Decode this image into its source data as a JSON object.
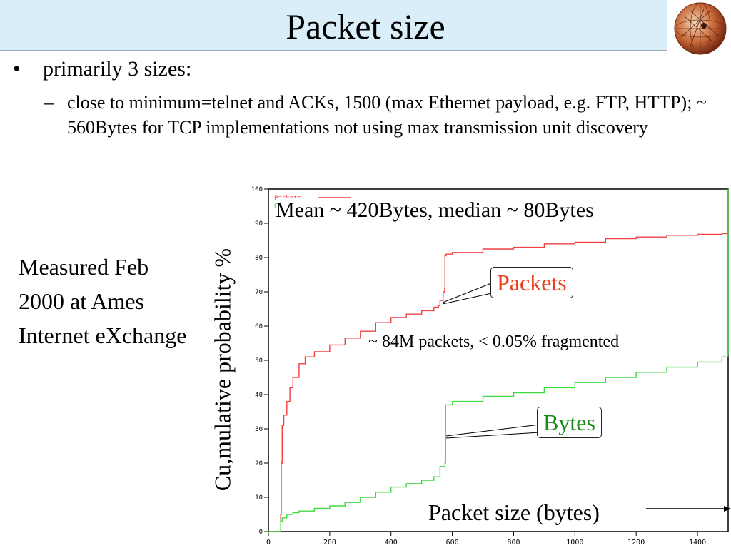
{
  "slide": {
    "title": "Packet size",
    "bullet": "primarily 3 sizes:",
    "sub_bullet": "close to minimum=telnet and ACKs, 1500 (max Ethernet payload, e.g. FTP, HTTP); ~ 560Bytes for TCP implementations not using max transmission unit discovery",
    "note": "Measured Feb 2000 at Ames Internet eXchange",
    "bullet_mark": "•",
    "dash_mark": "–"
  },
  "colors": {
    "packets": "#f04040",
    "bytes": "#40d840",
    "packets_label": "#e8401c",
    "bytes_label": "#1a8a1a",
    "title_bg": "#d9eef8"
  },
  "chart_data": {
    "type": "line",
    "ylabel": "Cu,mulative probability %",
    "xlabel": "Packet size (bytes)",
    "xlim": [
      0,
      1500
    ],
    "ylim": [
      0,
      100
    ],
    "x_ticks": [
      0,
      200,
      400,
      600,
      800,
      1000,
      1200,
      1400
    ],
    "y_ticks": [
      0,
      10,
      20,
      30,
      40,
      50,
      60,
      70,
      80,
      90,
      100
    ],
    "legend": {
      "placement": "top-left",
      "entries": [
        "Packets",
        "Bytes"
      ]
    },
    "annotations": {
      "mean_median": "Mean ~ 420Bytes, median ~ 80Bytes",
      "fragmented": "~ 84M packets, < 0.05% fragmented",
      "packets_callout": "Packets",
      "bytes_callout": "Bytes"
    },
    "series": [
      {
        "name": "Packets",
        "x": [
          0,
          38,
          40,
          42,
          45,
          50,
          60,
          70,
          80,
          100,
          120,
          150,
          200,
          250,
          300,
          350,
          400,
          450,
          500,
          540,
          555,
          560,
          565,
          570,
          575,
          576,
          580,
          600,
          700,
          800,
          900,
          1000,
          1100,
          1200,
          1300,
          1400,
          1480,
          1499,
          1500
        ],
        "y": [
          0,
          0,
          5,
          20,
          31,
          34,
          38,
          42,
          45,
          49,
          51,
          52.5,
          54.5,
          56.5,
          58.5,
          61,
          62.5,
          63.5,
          64.5,
          65.5,
          66,
          67.5,
          67.5,
          70,
          71,
          80.5,
          81,
          81.5,
          82.5,
          83,
          84,
          84.5,
          85.5,
          86,
          86.5,
          86.8,
          87,
          87.2,
          100
        ]
      },
      {
        "name": "Bytes",
        "x": [
          0,
          38,
          40,
          45,
          60,
          80,
          100,
          150,
          200,
          250,
          300,
          350,
          400,
          450,
          500,
          540,
          555,
          560,
          570,
          576,
          578,
          600,
          700,
          800,
          900,
          1000,
          1100,
          1200,
          1300,
          1400,
          1480,
          1499,
          1500
        ],
        "y": [
          0,
          0,
          3,
          4,
          5,
          5.5,
          6,
          6.8,
          7.5,
          8.5,
          10,
          11.5,
          13,
          14,
          15,
          16,
          16,
          19,
          19,
          20,
          37,
          38,
          39.5,
          40.5,
          42,
          43.5,
          45,
          46.5,
          48,
          49.5,
          51,
          52,
          100
        ]
      }
    ]
  }
}
